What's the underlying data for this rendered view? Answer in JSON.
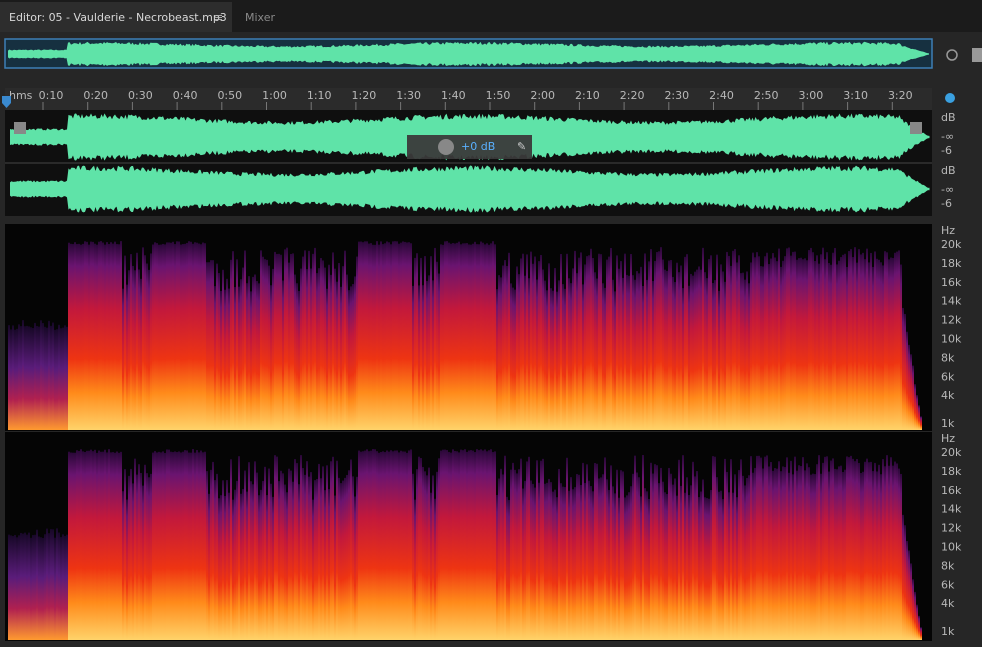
{
  "tabs": [
    {
      "label": "Editor: 05 - Vaulderie - Necrobeast.mp3"
    },
    {
      "label": "Mixer"
    }
  ],
  "ruler": {
    "unit": "hms",
    "labels": [
      "0:10",
      "0:20",
      "0:30",
      "0:40",
      "0:50",
      "1:00",
      "1:10",
      "1:20",
      "1:30",
      "1:40",
      "1:50",
      "2:00",
      "2:10",
      "2:20",
      "2:30",
      "2:40",
      "2:50",
      "3:00",
      "3:10",
      "3:20"
    ]
  },
  "hud": {
    "gain": "+0 dB"
  },
  "channels": [
    {
      "unit": "dB",
      "labels": [
        "-∞",
        "-6"
      ]
    },
    {
      "unit": "dB",
      "labels": [
        "-∞",
        "-6"
      ]
    }
  ],
  "spectrograms": [
    {
      "unit": "Hz",
      "labels": [
        "20k",
        "18k",
        "16k",
        "14k",
        "12k",
        "10k",
        "8k",
        "6k",
        "4k",
        "1k"
      ]
    },
    {
      "unit": "Hz",
      "labels": [
        "20k",
        "18k",
        "16k",
        "14k",
        "12k",
        "10k",
        "8k",
        "6k",
        "4k",
        "1k"
      ]
    }
  ]
}
